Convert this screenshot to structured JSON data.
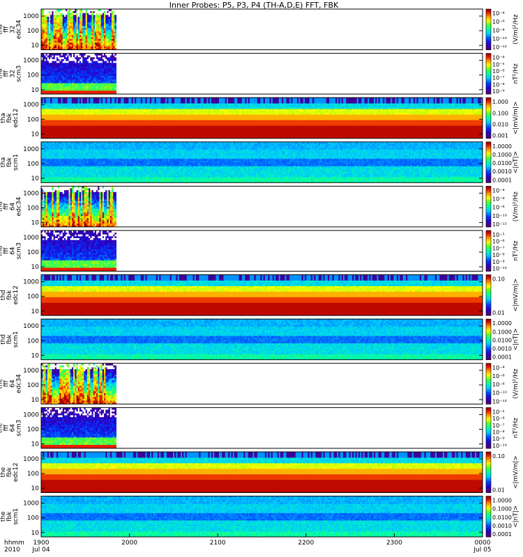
{
  "figure": {
    "title": "Inner Probes: P5, P3, P4 (TH-A,D,E) FFT, FBK",
    "time_unit_label": "hhmm",
    "year_label": "2010"
  },
  "colors": {
    "background": "#ffffff",
    "axis": "#000000",
    "no_data": "#ffffff"
  },
  "chart_data": {
    "type": "heatmap",
    "colormap": "rainbow (purple-blue-cyan-green-yellow-orange-red)",
    "x": {
      "ticks": [
        "1900",
        "2000",
        "2100",
        "2200",
        "2300",
        "0000"
      ],
      "tick_hours": [
        19,
        20,
        21,
        22,
        23,
        24
      ],
      "dates": [
        "Jul 04",
        "",
        "",
        "",
        "",
        "Jul 05"
      ],
      "range_hours": [
        19,
        24
      ]
    },
    "panels": [
      {
        "ylabel": [
          "tha",
          "fff",
          "32",
          "edc34"
        ],
        "yticks": [
          "10",
          "100",
          "1000"
        ],
        "data_end_hour": 19.85,
        "pattern": "edc",
        "cb_unit": "(V/m)²/Hz",
        "cb_ticks": [
          "10⁻⁴",
          "10⁻⁶",
          "10⁻⁸",
          "10⁻¹⁰",
          "10⁻¹²"
        ]
      },
      {
        "ylabel": [
          "tha",
          "fff",
          "32",
          "scm3"
        ],
        "yticks": [
          "10",
          "100",
          "1000"
        ],
        "data_end_hour": 19.85,
        "pattern": "scm",
        "cb_unit": "nT²/Hz",
        "cb_ticks": [
          "10⁻⁴",
          "10⁻⁵",
          "10⁻⁶",
          "10⁻⁷",
          "10⁻⁸",
          "10⁻⁹"
        ]
      },
      {
        "ylabel": [
          "tha",
          "fbk",
          "edc12"
        ],
        "yticks": [
          "10",
          "100",
          "1000"
        ],
        "data_end_hour": 24,
        "pattern": "fbk_edc",
        "cb_unit": "<|mV/m|>",
        "cb_ticks": [
          "1.000",
          "0.100",
          "0.010",
          "0.001"
        ]
      },
      {
        "ylabel": [
          "tha",
          "fbk",
          "scm1"
        ],
        "yticks": [
          "10",
          "100",
          "1000"
        ],
        "data_end_hour": 24,
        "pattern": "fbk_scm",
        "cb_unit": "<|nT|>",
        "cb_ticks": [
          "1.0000",
          "0.1000",
          "0.0100",
          "0.0010",
          "0.0001"
        ]
      },
      {
        "ylabel": [
          "thd",
          "fff",
          "64",
          "edc34"
        ],
        "yticks": [
          "10",
          "100",
          "1000"
        ],
        "data_end_hour": 19.85,
        "pattern": "edc",
        "cb_unit": "(V/m)²/Hz",
        "cb_ticks": [
          "10⁻⁴",
          "10⁻⁶",
          "10⁻⁸",
          "10⁻¹⁰",
          "10⁻¹²"
        ]
      },
      {
        "ylabel": [
          "thd",
          "fff",
          "64",
          "scm3"
        ],
        "yticks": [
          "10",
          "100",
          "1000"
        ],
        "data_end_hour": 19.85,
        "pattern": "scm",
        "cb_unit": "nT²/Hz",
        "cb_ticks": [
          "10⁻⁵",
          "10⁻⁶",
          "10⁻⁷",
          "10⁻⁸",
          "10⁻⁹",
          "10⁻¹⁰"
        ]
      },
      {
        "ylabel": [
          "thd",
          "fbk",
          "edc12"
        ],
        "yticks": [
          "10",
          "100",
          "1000"
        ],
        "data_end_hour": 24,
        "pattern": "fbk_edc",
        "cb_unit": "<|mV/m|>",
        "cb_ticks": [
          "0.10",
          "0.01"
        ]
      },
      {
        "ylabel": [
          "thd",
          "fbk",
          "scm1"
        ],
        "yticks": [
          "10",
          "100",
          "1000"
        ],
        "data_end_hour": 24,
        "pattern": "fbk_scm",
        "cb_unit": "<|nT|>",
        "cb_ticks": [
          "1.0000",
          "0.1000",
          "0.0100",
          "0.0010",
          "0.0001"
        ]
      },
      {
        "ylabel": [
          "the",
          "fff",
          "64",
          "edc34"
        ],
        "yticks": [
          "10",
          "100",
          "1000"
        ],
        "data_end_hour": 19.85,
        "pattern": "edc",
        "cb_unit": "(V/m)²/Hz",
        "cb_ticks": [
          "10⁻⁴",
          "10⁻⁶",
          "10⁻⁸",
          "10⁻¹⁰",
          "10⁻¹²"
        ]
      },
      {
        "ylabel": [
          "the",
          "fff",
          "64",
          "scm3"
        ],
        "yticks": [
          "10",
          "100",
          "1000"
        ],
        "data_end_hour": 19.85,
        "pattern": "scm",
        "cb_unit": "nT²/Hz",
        "cb_ticks": [
          "10⁻⁵",
          "10⁻⁶",
          "10⁻⁷",
          "10⁻⁸",
          "10⁻⁹",
          "10⁻¹⁰"
        ]
      },
      {
        "ylabel": [
          "the",
          "fbk",
          "edc12"
        ],
        "yticks": [
          "10",
          "100",
          "1000"
        ],
        "data_end_hour": 24,
        "pattern": "fbk_edc",
        "cb_unit": "<|mV/m|>",
        "cb_ticks": [
          "0.10",
          "0.01"
        ]
      },
      {
        "ylabel": [
          "the",
          "fbk",
          "scm1"
        ],
        "yticks": [
          "10",
          "100",
          "1000"
        ],
        "data_end_hour": 24,
        "pattern": "fbk_scm",
        "cb_unit": "<|nT|>",
        "cb_ticks": [
          "1.0000",
          "0.1000",
          "0.0100",
          "0.0010",
          "0.0001"
        ]
      }
    ]
  }
}
